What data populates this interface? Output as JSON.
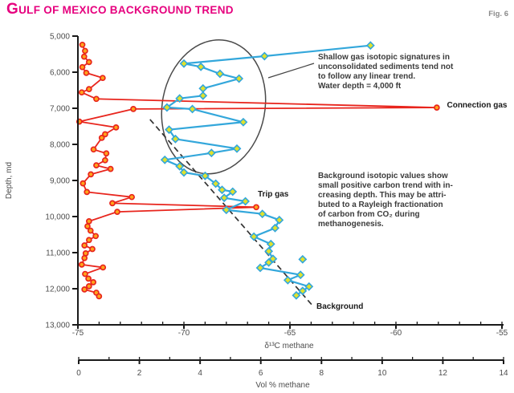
{
  "title": "GULF OF MEXICO BACKGROUND TREND",
  "figure_label": "Fig. 6",
  "colors": {
    "title": "#E6007E",
    "red_line": "#E8251D",
    "red_marker_fill": "#FFA41B",
    "blue_line": "#33A7DB",
    "diamond_fill": "#E0E12C",
    "trend_line": "#333333",
    "ellipse_stroke": "#4a4a4a",
    "axis": "#1a1a1a",
    "tick_text": "#4d4d4d"
  },
  "chart_data": {
    "type": "line",
    "title": "Gulf of Mexico background trend",
    "grid": false,
    "y_axis": {
      "label": "Depth, md",
      "min": 5000,
      "max": 13000,
      "inverted": true,
      "tick_values": [
        5000,
        6000,
        7000,
        8000,
        9000,
        10000,
        11000,
        12000,
        13000
      ],
      "tick_labels": [
        "5,000",
        "6,000",
        "7,000",
        "8,000",
        "9,000",
        "10,000",
        "11,000",
        "12,000",
        "13,000"
      ]
    },
    "x_axis_d13c": {
      "label": "δ¹³C methane",
      "min": -75,
      "max": -55,
      "minor_step": 1,
      "tick_values": [
        -75,
        -70,
        -65,
        -60,
        -55
      ],
      "tick_labels": [
        "-75",
        "-70",
        "-65",
        "-60",
        "-55"
      ]
    },
    "x_axis_vol": {
      "label": "Vol % methane",
      "min": 0,
      "max": 14,
      "minor_step": 1,
      "tick_values": [
        0,
        2,
        4,
        6,
        8,
        10,
        12,
        14
      ],
      "tick_labels": [
        "0",
        "2",
        "4",
        "6",
        "8",
        "10",
        "12",
        "14"
      ]
    },
    "series": [
      {
        "name": "Vol % methane",
        "x_axis": "vol",
        "marker": "circle",
        "points": [
          [
            0.12,
            5240
          ],
          [
            0.21,
            5410
          ],
          [
            0.18,
            5570
          ],
          [
            0.34,
            5720
          ],
          [
            0.12,
            5860
          ],
          [
            0.25,
            6020
          ],
          [
            0.79,
            6160
          ],
          [
            0.34,
            6470
          ],
          [
            0.1,
            6560
          ],
          [
            0.58,
            6740
          ],
          [
            11.8,
            6980
          ],
          [
            1.8,
            7020
          ],
          [
            0.02,
            7370
          ],
          [
            1.23,
            7530
          ],
          [
            0.87,
            7720
          ],
          [
            0.76,
            7820
          ],
          [
            0.49,
            8140
          ],
          [
            0.91,
            8250
          ],
          [
            0.87,
            8440
          ],
          [
            0.58,
            8580
          ],
          [
            1.05,
            8680
          ],
          [
            0.4,
            8830
          ],
          [
            0.14,
            9080
          ],
          [
            0.27,
            9320
          ],
          [
            1.75,
            9460
          ],
          [
            1.11,
            9630
          ],
          [
            5.85,
            9740
          ],
          [
            1.27,
            9870
          ],
          [
            0.34,
            10130
          ],
          [
            0.29,
            10270
          ],
          [
            0.39,
            10390
          ],
          [
            0.56,
            10540
          ],
          [
            0.34,
            10650
          ],
          [
            0.19,
            10800
          ],
          [
            0.45,
            10900
          ],
          [
            0.23,
            11020
          ],
          [
            0.19,
            11150
          ],
          [
            0.1,
            11330
          ],
          [
            0.8,
            11410
          ],
          [
            0.21,
            11590
          ],
          [
            0.32,
            11720
          ],
          [
            0.48,
            11820
          ],
          [
            0.34,
            11930
          ],
          [
            0.19,
            12020
          ],
          [
            0.58,
            12110
          ],
          [
            0.67,
            12210
          ]
        ]
      },
      {
        "name": "δ13C methane",
        "x_axis": "d13c",
        "marker": "diamond",
        "points": [
          [
            -61.2,
            5260
          ],
          [
            -66.2,
            5556
          ],
          [
            -70.0,
            5762
          ],
          [
            -69.2,
            5851
          ],
          [
            -68.3,
            6044
          ],
          [
            -67.4,
            6178
          ],
          [
            -69.1,
            6451
          ],
          [
            -69.1,
            6651
          ],
          [
            -70.2,
            6727
          ],
          [
            -70.8,
            6978
          ],
          [
            -69.6,
            7022
          ],
          [
            -67.2,
            7384
          ],
          [
            -70.7,
            7593
          ],
          [
            -70.4,
            7851
          ],
          [
            -67.5,
            8118
          ],
          [
            -68.7,
            8238
          ],
          [
            -70.9,
            8429
          ],
          [
            -70.2,
            8607
          ],
          [
            -70.0,
            8778
          ],
          [
            -69.0,
            8873
          ],
          [
            -68.5,
            9089
          ],
          [
            -68.2,
            9260
          ],
          [
            -67.7,
            9311
          ],
          [
            -68.1,
            9482
          ],
          [
            -67.1,
            9578
          ],
          [
            -68.0,
            9816
          ],
          [
            -66.3,
            9927
          ],
          [
            -65.5,
            10096
          ],
          [
            -65.7,
            10318
          ],
          [
            -66.7,
            10556
          ],
          [
            -65.9,
            10762
          ],
          [
            -66.0,
            10962
          ],
          [
            -65.8,
            11171
          ],
          [
            -66.0,
            11273
          ],
          [
            -66.4,
            11422
          ],
          [
            -64.5,
            11616
          ],
          [
            -65.1,
            11762
          ],
          [
            -64.1,
            11940
          ],
          [
            -64.4,
            12060
          ],
          [
            -64.7,
            12184
          ]
        ],
        "extra_points": [
          [
            -64.4,
            11185
          ]
        ]
      }
    ],
    "trend_line": {
      "label": "Background",
      "x_axis": "d13c",
      "from": [
        -71.6,
        7310
      ],
      "to": [
        -63.9,
        12490
      ],
      "style": "dashed"
    },
    "ellipse_annotation": {
      "x_axis": "d13c",
      "center": [
        -68.6,
        6960
      ],
      "rx_units": 2.42,
      "ry_units": 1870,
      "rotation_deg": 11
    }
  },
  "annotations": {
    "shallow_note": "Shallow gas isotopic signatures in\nunconsolidated sediments tend not\nto follow any linear trend.\nWater depth = 4,000 ft",
    "background_note": "Background isotopic values show\nsmall positive carbon trend with in-\ncreasing depth. This may be attri-\nbuted to a Rayleigh fractionation\nof carbon from CO₂ during\nmethanogenesis.",
    "connection_gas_label": "Connection gas",
    "trip_gas_label": "Trip gas",
    "background_label": "Background"
  }
}
